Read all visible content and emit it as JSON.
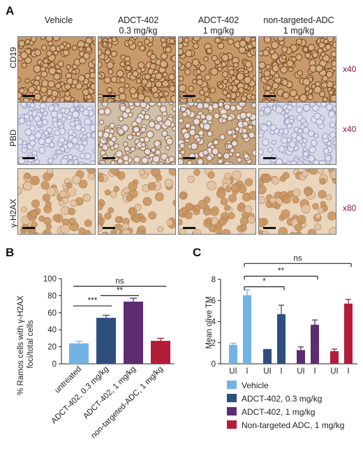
{
  "panel_a": {
    "letter": "A",
    "columns": [
      {
        "line1": "Vehicle",
        "line2": ""
      },
      {
        "line1": "ADCT-402",
        "line2": "0.3 mg/kg"
      },
      {
        "line1": "ADCT-402",
        "line2": "1 mg/kg"
      },
      {
        "line1": "non-targeted-ADC",
        "line2": "1 mg/kg"
      }
    ],
    "rows": [
      {
        "label": "CD19",
        "magnification": "x40",
        "stain": "cd19"
      },
      {
        "label": "PBD",
        "magnification": "x40",
        "stain": "pbd"
      },
      {
        "label": "γ-H2AX",
        "magnification": "x80",
        "stain": "h2ax"
      }
    ],
    "colors": {
      "cd19": "#7a4a22",
      "pbd_blue": "#c9cde2",
      "pbd_brown": "#9a6a3a",
      "h2ax": "#c99660",
      "magnification": "#8a1538"
    }
  },
  "chart_data": [
    {
      "panel": "B",
      "type": "bar",
      "ylabel_line1": "% Ramos cells with γ-H2AX",
      "ylabel_line2": "foci/total cells",
      "ylim": [
        0,
        100
      ],
      "yticks": [
        0,
        20,
        40,
        60,
        80,
        100
      ],
      "categories": [
        "untreated",
        "ADCT-402, 0.3 mg/kg",
        "ADCT-402, 1 mg/kg",
        "non-targeted-ADC, 1 mg/kg"
      ],
      "values": [
        24,
        54,
        73,
        27
      ],
      "errors": [
        2.5,
        3,
        4,
        3
      ],
      "colors": [
        "#72b3e4",
        "#2e4f7e",
        "#5e2c70",
        "#b31d3a"
      ],
      "significance": [
        {
          "from": 0,
          "to": 3,
          "label": "ns",
          "y": 91
        },
        {
          "from": 1,
          "to": 2,
          "label": "**",
          "y": 80
        },
        {
          "from": 0,
          "to": 1,
          "label": "***",
          "y": 68
        }
      ]
    },
    {
      "panel": "C",
      "type": "bar",
      "ylabel": "Mean olive TM",
      "ylim": [
        0,
        8
      ],
      "yticks": [
        0,
        2,
        4,
        6,
        8
      ],
      "groups": [
        {
          "bars": [
            {
              "label": "UI",
              "value": 1.8,
              "error": 0.15
            },
            {
              "label": "I",
              "value": 6.5,
              "error": 0.5
            }
          ]
        },
        {
          "bars": [
            {
              "label": "UI",
              "value": 1.4,
              "error": 0
            },
            {
              "label": "I",
              "value": 4.7,
              "error": 0.85
            }
          ]
        },
        {
          "bars": [
            {
              "label": "UI",
              "value": 1.3,
              "error": 0.3
            },
            {
              "label": "I",
              "value": 3.7,
              "error": 0.45
            }
          ]
        },
        {
          "bars": [
            {
              "label": "UI",
              "value": 1.2,
              "error": 0.2
            },
            {
              "label": "I",
              "value": 5.7,
              "error": 0.4
            }
          ]
        }
      ],
      "colors": [
        "#72b3e4",
        "#2e4f7e",
        "#5e2c70",
        "#b31d3a"
      ],
      "significance": [
        {
          "from": 0,
          "to": 3,
          "label": "ns",
          "y": 9.5
        },
        {
          "from": 0,
          "to": 2,
          "label": "**",
          "y": 8.3
        },
        {
          "from": 0,
          "to": 1,
          "label": "*",
          "y": 7.3
        }
      ],
      "legend": [
        "Vehicle",
        "ADCT-402, 0.3 mg/kg",
        "ADCT-402, 1 mg/kg",
        "Non-targeted ADC, 1 mg/kg"
      ]
    }
  ]
}
